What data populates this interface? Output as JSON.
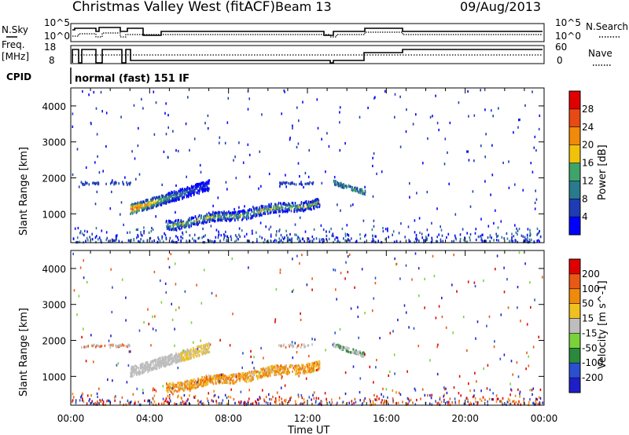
{
  "header": {
    "title": "Christmas Valley West (fitACF)",
    "beam": "Beam 13",
    "date": "09/Aug/2013"
  },
  "sky_panel": {
    "left_label": "N.Sky",
    "right_label": "N.Search",
    "ytick_top": "10^5",
    "ytick_bottom": "10^0"
  },
  "freq_panel": {
    "left_label_1": "Freq.",
    "left_label_2": "[MHz]",
    "left_ticks": [
      "18",
      "8"
    ],
    "right_ticks": [
      "60",
      "0"
    ],
    "right_label": "Nave"
  },
  "cpid_panel": {
    "label": "CPID",
    "text": "normal (fast) 151 IF"
  },
  "chart_data": [
    {
      "type": "heatmap",
      "ylabel": "Slant Range [km]",
      "yticks": [
        "1000",
        "2000",
        "3000",
        "4000"
      ],
      "ylim": [
        200,
        4500
      ],
      "xlim": [
        0,
        24
      ],
      "colorbar": {
        "label": "Power [dB]",
        "ticks": [
          "4",
          "8",
          "12",
          "16",
          "20",
          "24",
          "28"
        ],
        "range": [
          0,
          30
        ],
        "colors": [
          "#0000ff",
          "#1e3cb4",
          "#2a7a8e",
          "#3fa46a",
          "#f0c20a",
          "#f08a0a",
          "#e84a14",
          "#e00000"
        ]
      },
      "echo_regions": [
        {
          "t_start": 3.0,
          "t_end": 7.0,
          "range_start": 1100,
          "range_end": 1900,
          "note": "band"
        },
        {
          "t_start": 4.8,
          "t_end": 12.6,
          "range_start": 650,
          "range_end": 1500,
          "note": "band"
        },
        {
          "t_start": 13.3,
          "t_end": 14.9,
          "range_start": 1600,
          "range_end": 1900,
          "note": "patch"
        }
      ]
    },
    {
      "type": "heatmap",
      "ylabel": "Slant Range [km]",
      "yticks": [
        "1000",
        "2000",
        "3000",
        "4000"
      ],
      "ylim": [
        200,
        4500
      ],
      "xlim": [
        0,
        24
      ],
      "colorbar": {
        "label": "Velocity [m s^-1]",
        "ticks": [
          "200",
          "100",
          "50",
          "15",
          "-15",
          "-50",
          "-100",
          "-200"
        ],
        "colors": [
          "#1e1ec8",
          "#2a50d0",
          "#2a8a3c",
          "#7ad23a",
          "#bdbdbd",
          "#f0c020",
          "#f08a0a",
          "#e85a14",
          "#e00000"
        ]
      }
    }
  ],
  "time_axis": {
    "label": "Time UT",
    "ticks": [
      "00:00",
      "04:00",
      "08:00",
      "12:00",
      "16:00",
      "20:00",
      "00:00"
    ]
  }
}
